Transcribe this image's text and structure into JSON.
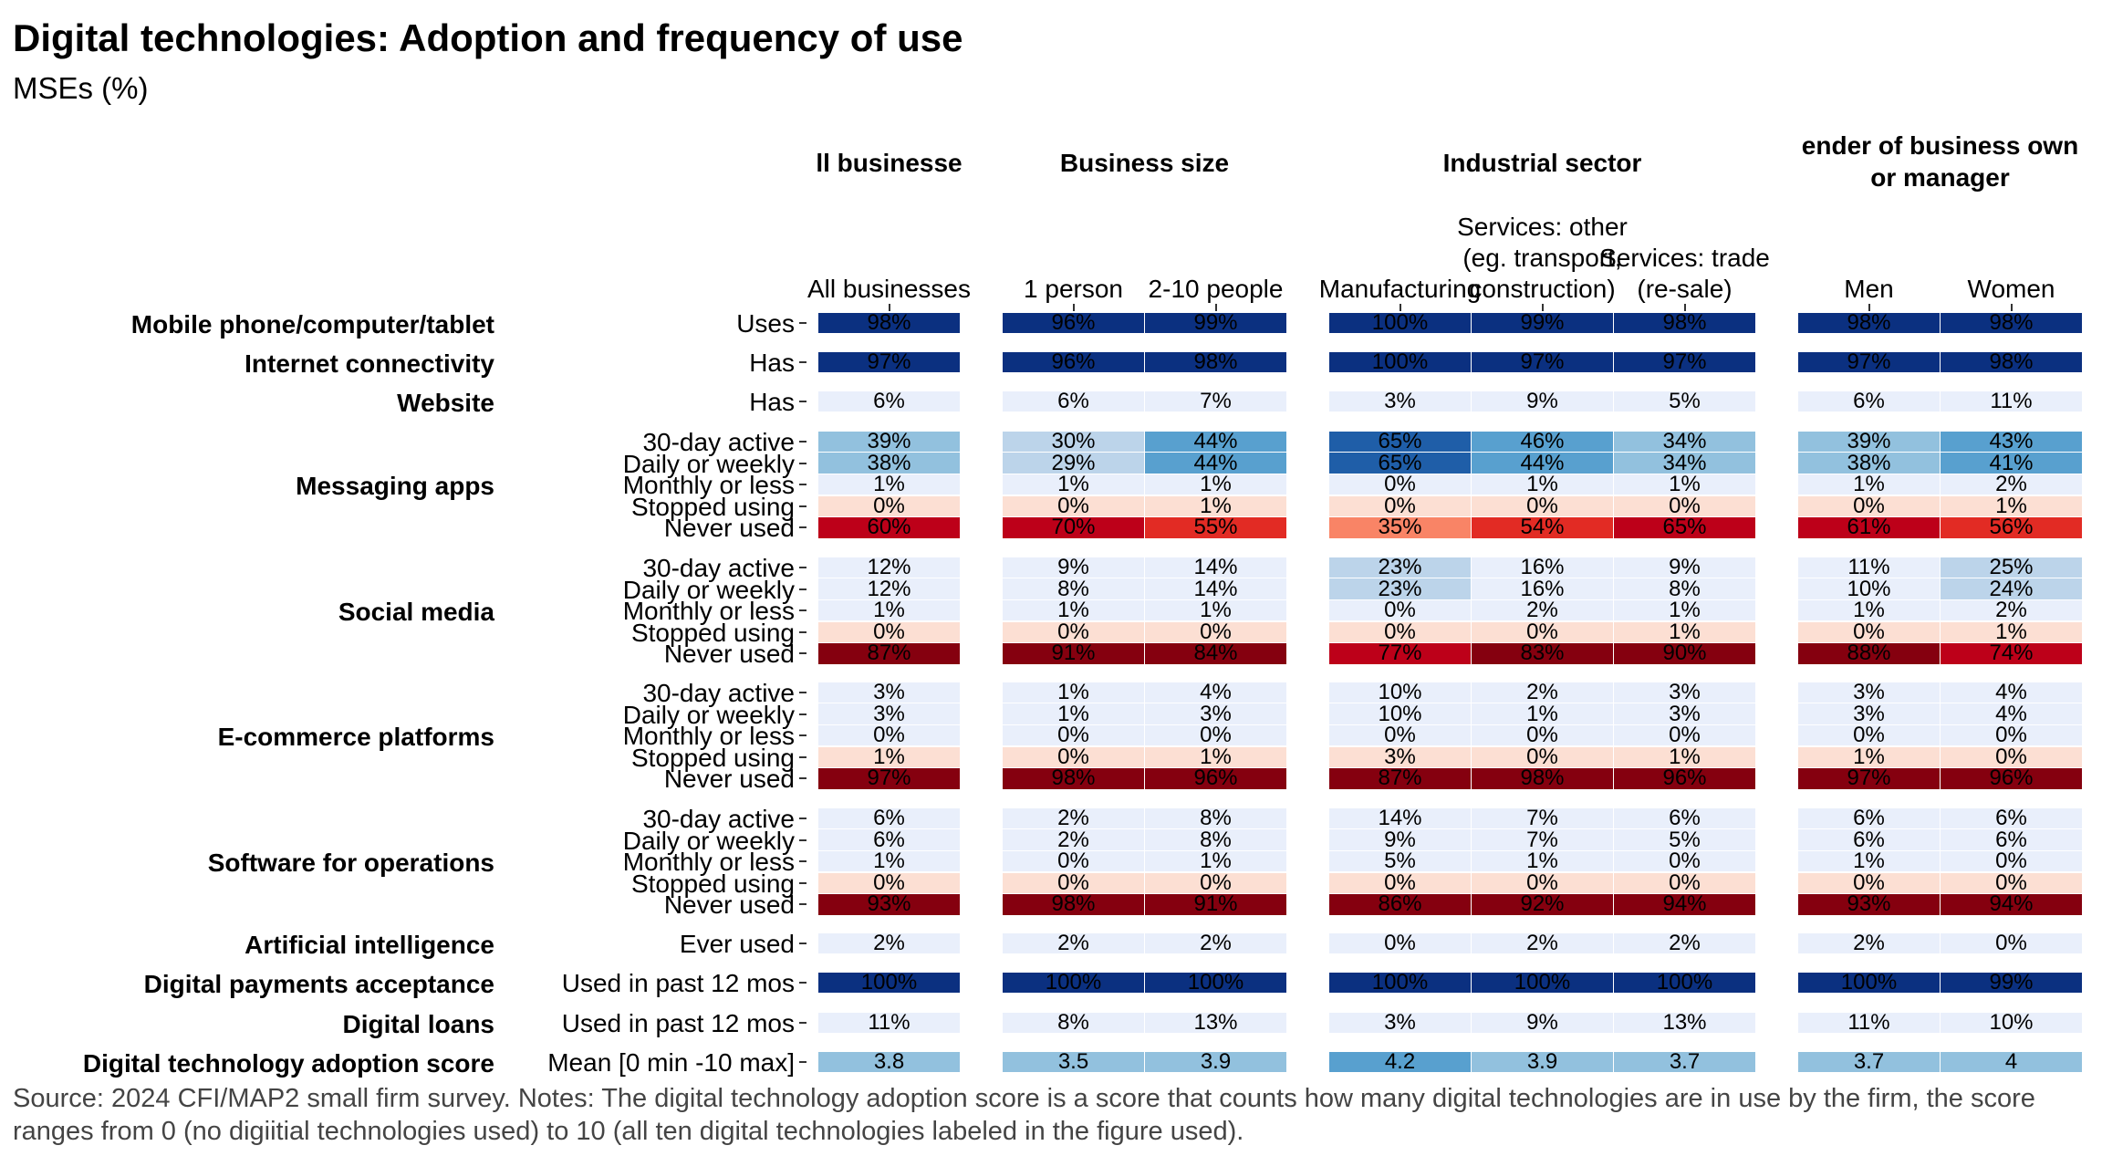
{
  "title": "Digital technologies: Adoption and frequency of use",
  "subtitle": "MSEs (%)",
  "footer": "Source: 2024 CFI/MAP2 small firm survey. Notes: The digital technology adoption score is a score that counts how many digital technologies are in use by the firm, the score ranges from 0 (no digiitial technologies used) to 10 (all ten digital technologies labeled in the figure used).",
  "chart_data": {
    "type": "heatmap",
    "title": "Digital technologies: Adoption and frequency of use",
    "subtitle": "MSEs (%)",
    "panels": [
      {
        "title": [
          "ll businesse"
        ],
        "columns": [
          "All businesses"
        ]
      },
      {
        "title": [
          "Business size"
        ],
        "columns": [
          "1 person",
          "2-10 people"
        ]
      },
      {
        "title": [
          "Industrial sector"
        ],
        "columns": [
          "Manufacturing",
          "Services: other (eg. transport, construction)",
          "Services: trade (re-sale)"
        ]
      },
      {
        "title": [
          "ender of business own",
          "or manager"
        ],
        "columns": [
          "Men",
          "Women"
        ]
      }
    ],
    "column_label_lines": [
      [
        "All businesses"
      ],
      [
        "1 person"
      ],
      [
        "2-10 people"
      ],
      [
        "Manufacturing"
      ],
      [
        "Services: other",
        "(eg. transport,",
        "construction)"
      ],
      [
        "Services: trade",
        "(re-sale)"
      ],
      [
        "Men"
      ],
      [
        "Women"
      ]
    ],
    "groups": [
      {
        "label": "Mobile phone/computer/tablet",
        "rows": [
          {
            "label": "Uses",
            "values": [
              "98%",
              "96%",
              "99%",
              "100%",
              "99%",
              "98%",
              "98%",
              "98%"
            ]
          }
        ]
      },
      {
        "label": "Internet connectivity",
        "rows": [
          {
            "label": "Has",
            "values": [
              "97%",
              "96%",
              "98%",
              "100%",
              "97%",
              "97%",
              "97%",
              "98%"
            ]
          }
        ]
      },
      {
        "label": "Website",
        "rows": [
          {
            "label": "Has",
            "values": [
              "6%",
              "6%",
              "7%",
              "3%",
              "9%",
              "5%",
              "6%",
              "11%"
            ]
          }
        ]
      },
      {
        "label": "Messaging apps",
        "rows": [
          {
            "label": "30-day active",
            "values": [
              "39%",
              "30%",
              "44%",
              "65%",
              "46%",
              "34%",
              "39%",
              "43%"
            ]
          },
          {
            "label": "Daily or weekly",
            "values": [
              "38%",
              "29%",
              "44%",
              "65%",
              "44%",
              "34%",
              "38%",
              "41%"
            ]
          },
          {
            "label": "Monthly or less",
            "values": [
              "1%",
              "1%",
              "1%",
              "0%",
              "1%",
              "1%",
              "1%",
              "2%"
            ]
          },
          {
            "label": "Stopped using",
            "values": [
              "0%",
              "0%",
              "1%",
              "0%",
              "0%",
              "0%",
              "0%",
              "1%"
            ]
          },
          {
            "label": "Never used",
            "values": [
              "60%",
              "70%",
              "55%",
              "35%",
              "54%",
              "65%",
              "61%",
              "56%"
            ]
          }
        ]
      },
      {
        "label": "Social media",
        "rows": [
          {
            "label": "30-day active",
            "values": [
              "12%",
              "9%",
              "14%",
              "23%",
              "16%",
              "9%",
              "11%",
              "25%"
            ]
          },
          {
            "label": "Daily or weekly",
            "values": [
              "12%",
              "8%",
              "14%",
              "23%",
              "16%",
              "8%",
              "10%",
              "24%"
            ]
          },
          {
            "label": "Monthly or less",
            "values": [
              "1%",
              "1%",
              "1%",
              "0%",
              "2%",
              "1%",
              "1%",
              "2%"
            ]
          },
          {
            "label": "Stopped using",
            "values": [
              "0%",
              "0%",
              "0%",
              "0%",
              "0%",
              "1%",
              "0%",
              "1%"
            ]
          },
          {
            "label": "Never used",
            "values": [
              "87%",
              "91%",
              "84%",
              "77%",
              "83%",
              "90%",
              "88%",
              "74%"
            ]
          }
        ]
      },
      {
        "label": "E-commerce platforms",
        "rows": [
          {
            "label": "30-day active",
            "values": [
              "3%",
              "1%",
              "4%",
              "10%",
              "2%",
              "3%",
              "3%",
              "4%"
            ]
          },
          {
            "label": "Daily or weekly",
            "values": [
              "3%",
              "1%",
              "3%",
              "10%",
              "1%",
              "3%",
              "3%",
              "4%"
            ]
          },
          {
            "label": "Monthly or less",
            "values": [
              "0%",
              "0%",
              "0%",
              "0%",
              "0%",
              "0%",
              "0%",
              "0%"
            ]
          },
          {
            "label": "Stopped using",
            "values": [
              "1%",
              "0%",
              "1%",
              "3%",
              "0%",
              "1%",
              "1%",
              "0%"
            ]
          },
          {
            "label": "Never used",
            "values": [
              "97%",
              "98%",
              "96%",
              "87%",
              "98%",
              "96%",
              "97%",
              "96%"
            ]
          }
        ]
      },
      {
        "label": "Software for operations",
        "rows": [
          {
            "label": "30-day active",
            "values": [
              "6%",
              "2%",
              "8%",
              "14%",
              "7%",
              "6%",
              "6%",
              "6%"
            ]
          },
          {
            "label": "Daily or weekly",
            "values": [
              "6%",
              "2%",
              "8%",
              "9%",
              "7%",
              "5%",
              "6%",
              "6%"
            ]
          },
          {
            "label": "Monthly or less",
            "values": [
              "1%",
              "0%",
              "1%",
              "5%",
              "1%",
              "0%",
              "1%",
              "0%"
            ]
          },
          {
            "label": "Stopped using",
            "values": [
              "0%",
              "0%",
              "0%",
              "0%",
              "0%",
              "0%",
              "0%",
              "0%"
            ]
          },
          {
            "label": "Never used",
            "values": [
              "93%",
              "98%",
              "91%",
              "86%",
              "92%",
              "94%",
              "93%",
              "94%"
            ]
          }
        ]
      },
      {
        "label": "Artificial intelligence",
        "rows": [
          {
            "label": "Ever used",
            "values": [
              "2%",
              "2%",
              "2%",
              "0%",
              "2%",
              "2%",
              "2%",
              "0%"
            ]
          }
        ]
      },
      {
        "label": "Digital payments acceptance",
        "rows": [
          {
            "label": "Used in past 12 mos",
            "values": [
              "100%",
              "100%",
              "100%",
              "100%",
              "100%",
              "100%",
              "100%",
              "99%"
            ]
          }
        ]
      },
      {
        "label": "Digital loans",
        "rows": [
          {
            "label": "Used in past 12 mos",
            "values": [
              "11%",
              "8%",
              "13%",
              "3%",
              "9%",
              "13%",
              "11%",
              "10%"
            ]
          }
        ]
      },
      {
        "label": "Digital technology adoption score",
        "rows": [
          {
            "label": "Mean [0 min -10 max]",
            "values": [
              "3.8",
              "3.5",
              "3.9",
              "4.2",
              "3.9",
              "3.7",
              "3.7",
              "4"
            ]
          }
        ]
      }
    ],
    "colors": {
      "blue_scale": [
        "#e9effb",
        "#bcd4ea",
        "#92c1de",
        "#58a0cf",
        "#1f5ea8",
        "#0b3080"
      ],
      "stopped": "#fcdfd3",
      "red_scale": [
        "#f98466",
        "#e22b24",
        "#bd0019",
        "#85000f"
      ]
    }
  }
}
